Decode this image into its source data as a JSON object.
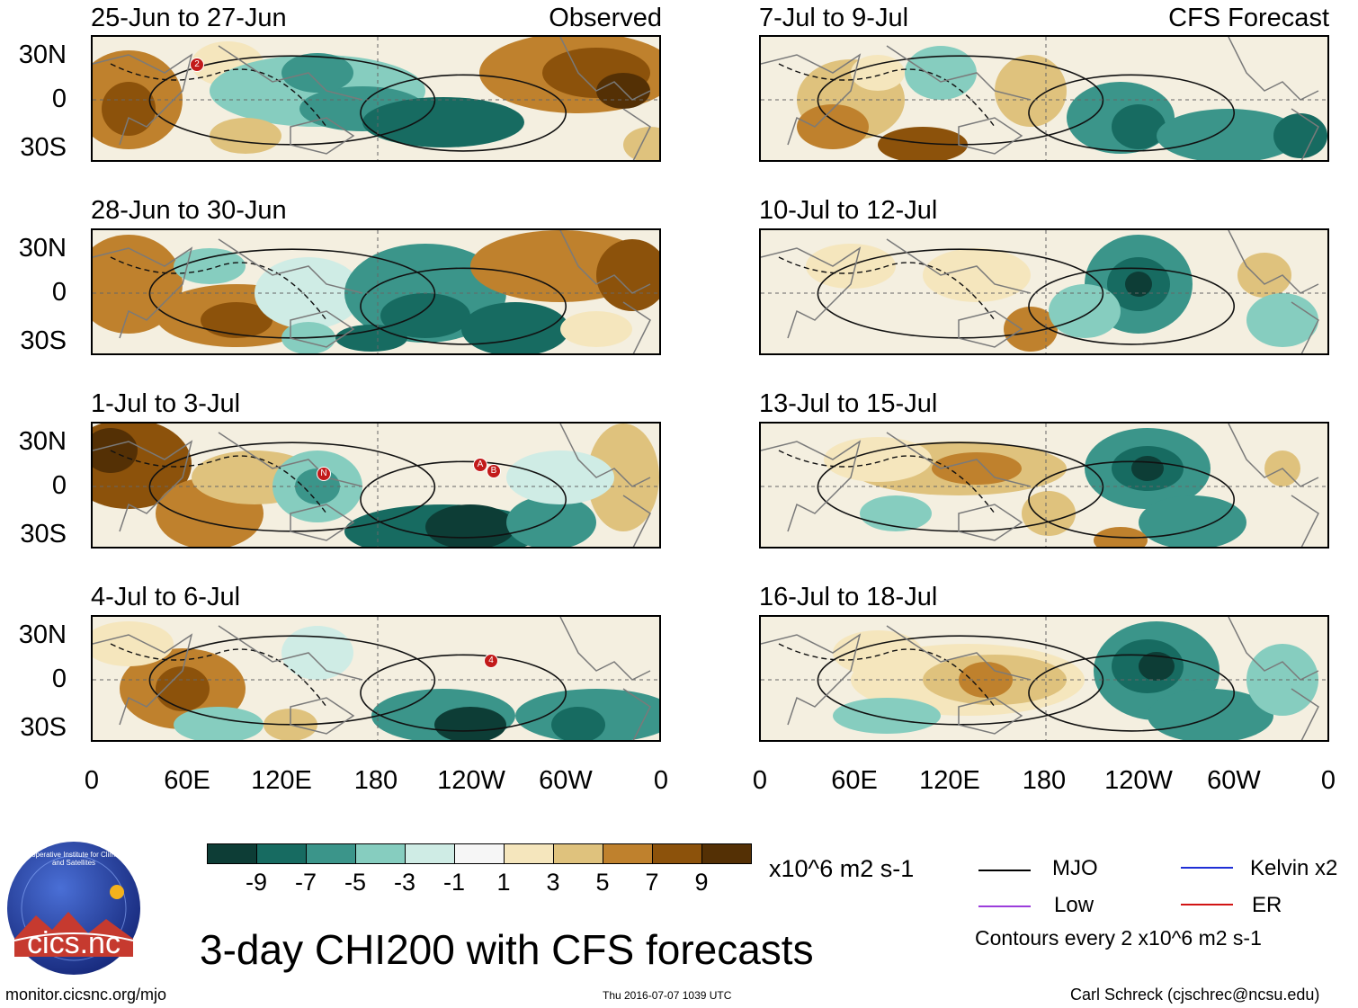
{
  "panels_observed": [
    {
      "title": "25-Jun to 27-Jun",
      "tag": "Observed"
    },
    {
      "title": "28-Jun to 30-Jun",
      "tag": ""
    },
    {
      "title": "1-Jul to 3-Jul",
      "tag": ""
    },
    {
      "title": "4-Jul to 6-Jul",
      "tag": ""
    }
  ],
  "panels_forecast": [
    {
      "title": "7-Jul to 9-Jul",
      "tag": "CFS Forecast"
    },
    {
      "title": "10-Jul to 12-Jul",
      "tag": ""
    },
    {
      "title": "13-Jul to 15-Jul",
      "tag": ""
    },
    {
      "title": "16-Jul to 18-Jul",
      "tag": ""
    }
  ],
  "lat_labels": [
    "30N",
    "0",
    "30S"
  ],
  "lon_labels": [
    "0",
    "60E",
    "120E",
    "180",
    "120W",
    "60W",
    "0"
  ],
  "markers": {
    "p1": [
      "2"
    ],
    "p3": [
      "N",
      "A",
      "B"
    ],
    "p4": [
      "4"
    ]
  },
  "colorbar": {
    "colors": [
      "#0d3d36",
      "#176b61",
      "#3b958a",
      "#86cdbf",
      "#cfece5",
      "#f6f6f6",
      "#f5e6bd",
      "#dfc27d",
      "#bf812d",
      "#8c520b",
      "#543005"
    ],
    "labels": [
      "-9",
      "-7",
      "-5",
      "-3",
      "-1",
      "1",
      "3",
      "5",
      "7",
      "9"
    ],
    "units": "x10^6 m2 s-1"
  },
  "legend": {
    "items": [
      {
        "label": "MJO",
        "color": "#000000"
      },
      {
        "label": "Kelvin x2",
        "color": "#1f2fd6"
      },
      {
        "label": "Low",
        "color": "#9b3ddb"
      },
      {
        "label": "ER",
        "color": "#d21414"
      }
    ],
    "note": "Contours every 2 x10^6 m2 s-1"
  },
  "main_title": "3-day CHI200 with CFS forecasts",
  "logo_text": "cics.nc",
  "logo_ring_text": "Cooperative Institute for Climate and Satellites",
  "footer": {
    "left": "monitor.cicsnc.org/mjo",
    "center": "Thu 2016-07-07 1039 UTC",
    "right": "Carl Schreck (cjschrec@ncsu.edu)"
  }
}
